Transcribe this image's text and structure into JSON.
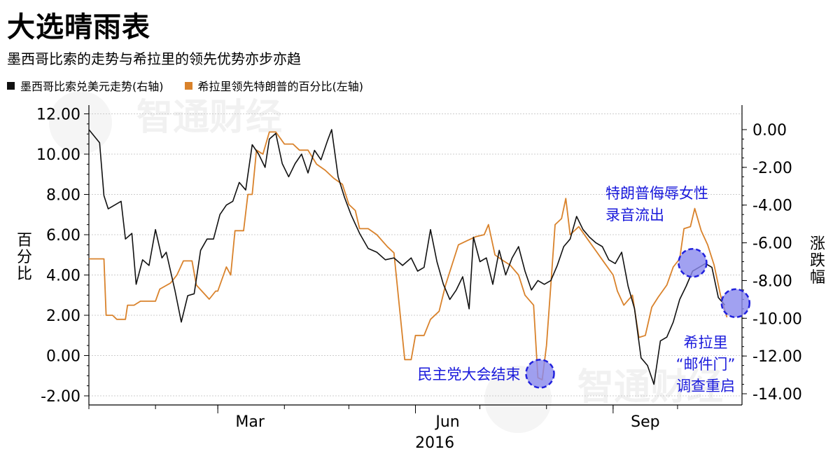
{
  "title": "大选晴雨表",
  "subtitle": "墨西哥比索的走势与希拉里的领先优势亦步亦趋",
  "watermark": "智通财经",
  "legend": [
    {
      "label": "墨西哥比索兑美元走势(右轴)",
      "color": "#111111"
    },
    {
      "label": "希拉里领先特朗普的百分比(左轴)",
      "color": "#d9822b"
    }
  ],
  "chart_data": {
    "type": "line",
    "x_axis": {
      "ticks": [
        "Mar",
        "Jun",
        "Sep"
      ],
      "year_label": "2016",
      "range": [
        "2016-01-01",
        "2016-10-31"
      ]
    },
    "y_left": {
      "label": "百分比",
      "range": [
        -2,
        12
      ],
      "ticks": [
        "-2.00",
        "0.00",
        "2.00",
        "4.00",
        "6.00",
        "8.00",
        "10.00",
        "12.00"
      ]
    },
    "y_right": {
      "label": "涨跌幅",
      "range": [
        -14,
        0
      ],
      "ticks": [
        "0.00",
        "-2.00",
        "-4.00",
        "-6.00",
        "-8.00",
        "-10.00",
        "-12.00",
        "-14.00"
      ]
    },
    "series": [
      {
        "name": "希拉里领先特朗普的百分比(左轴)",
        "axis": "left",
        "color": "#d9822b",
        "points": [
          [
            "2016-01-01",
            4.8
          ],
          [
            "2016-01-08",
            4.8
          ],
          [
            "2016-01-09",
            2.0
          ],
          [
            "2016-01-12",
            2.0
          ],
          [
            "2016-01-14",
            1.8
          ],
          [
            "2016-01-18",
            1.8
          ],
          [
            "2016-01-19",
            2.5
          ],
          [
            "2016-01-22",
            2.5
          ],
          [
            "2016-01-25",
            2.7
          ],
          [
            "2016-02-01",
            2.7
          ],
          [
            "2016-02-03",
            3.3
          ],
          [
            "2016-02-08",
            3.6
          ],
          [
            "2016-02-11",
            4.0
          ],
          [
            "2016-02-14",
            4.7
          ],
          [
            "2016-02-18",
            4.7
          ],
          [
            "2016-02-20",
            3.5
          ],
          [
            "2016-02-26",
            2.8
          ],
          [
            "2016-02-29",
            3.2
          ],
          [
            "2016-03-01",
            3.2
          ],
          [
            "2016-03-05",
            4.4
          ],
          [
            "2016-03-07",
            4.0
          ],
          [
            "2016-03-09",
            6.2
          ],
          [
            "2016-03-13",
            6.2
          ],
          [
            "2016-03-15",
            8.0
          ],
          [
            "2016-03-17",
            8.0
          ],
          [
            "2016-03-19",
            10.2
          ],
          [
            "2016-03-22",
            10.0
          ],
          [
            "2016-03-25",
            11.1
          ],
          [
            "2016-03-28",
            11.1
          ],
          [
            "2016-04-01",
            10.5
          ],
          [
            "2016-04-05",
            10.5
          ],
          [
            "2016-04-08",
            10.2
          ],
          [
            "2016-04-12",
            10.2
          ],
          [
            "2016-04-16",
            9.5
          ],
          [
            "2016-04-20",
            9.2
          ],
          [
            "2016-04-24",
            8.8
          ],
          [
            "2016-04-28",
            8.5
          ],
          [
            "2016-05-01",
            7.5
          ],
          [
            "2016-05-04",
            7.2
          ],
          [
            "2016-05-06",
            6.3
          ],
          [
            "2016-05-10",
            6.3
          ],
          [
            "2016-05-14",
            6.0
          ],
          [
            "2016-05-19",
            5.4
          ],
          [
            "2016-05-22",
            5.1
          ],
          [
            "2016-05-24",
            3.0
          ],
          [
            "2016-05-27",
            -0.2
          ],
          [
            "2016-05-30",
            -0.2
          ],
          [
            "2016-06-01",
            1.0
          ],
          [
            "2016-06-05",
            1.0
          ],
          [
            "2016-06-08",
            1.8
          ],
          [
            "2016-06-12",
            2.2
          ],
          [
            "2016-06-15",
            3.5
          ],
          [
            "2016-06-18",
            4.5
          ],
          [
            "2016-06-21",
            5.5
          ],
          [
            "2016-06-25",
            5.7
          ],
          [
            "2016-06-29",
            5.9
          ],
          [
            "2016-07-03",
            6.0
          ],
          [
            "2016-07-05",
            6.5
          ],
          [
            "2016-07-08",
            5.0
          ],
          [
            "2016-07-12",
            4.7
          ],
          [
            "2016-07-15",
            4.5
          ],
          [
            "2016-07-19",
            4.0
          ],
          [
            "2016-07-22",
            3.0
          ],
          [
            "2016-07-26",
            2.5
          ],
          [
            "2016-07-28",
            -1.1
          ],
          [
            "2016-07-30",
            -1.2
          ],
          [
            "2016-08-01",
            0.5
          ],
          [
            "2016-08-03",
            3.5
          ],
          [
            "2016-08-05",
            6.5
          ],
          [
            "2016-08-08",
            6.8
          ],
          [
            "2016-08-10",
            7.8
          ],
          [
            "2016-08-12",
            6.0
          ],
          [
            "2016-08-16",
            6.4
          ],
          [
            "2016-08-20",
            5.8
          ],
          [
            "2016-08-24",
            5.2
          ],
          [
            "2016-08-28",
            4.6
          ],
          [
            "2016-09-01",
            4.0
          ],
          [
            "2016-09-03",
            3.2
          ],
          [
            "2016-09-06",
            2.5
          ],
          [
            "2016-09-10",
            3.0
          ],
          [
            "2016-09-13",
            0.9
          ],
          [
            "2016-09-16",
            1.0
          ],
          [
            "2016-09-19",
            2.4
          ],
          [
            "2016-09-22",
            2.9
          ],
          [
            "2016-09-26",
            3.5
          ],
          [
            "2016-09-29",
            4.4
          ],
          [
            "2016-10-02",
            4.8
          ],
          [
            "2016-10-04",
            6.3
          ],
          [
            "2016-10-07",
            6.4
          ],
          [
            "2016-10-09",
            7.3
          ],
          [
            "2016-10-12",
            6.2
          ],
          [
            "2016-10-15",
            5.5
          ],
          [
            "2016-10-18",
            4.5
          ],
          [
            "2016-10-21",
            3.0
          ],
          [
            "2016-10-24",
            1.9
          ]
        ]
      },
      {
        "name": "墨西哥比索兑美元走势(右轴)",
        "axis": "right",
        "color": "#111111",
        "points": [
          [
            "2016-01-01",
            0.0
          ],
          [
            "2016-01-06",
            -0.7
          ],
          [
            "2016-01-08",
            -3.5
          ],
          [
            "2016-01-10",
            -4.2
          ],
          [
            "2016-01-13",
            -4.0
          ],
          [
            "2016-01-16",
            -3.8
          ],
          [
            "2016-01-18",
            -5.8
          ],
          [
            "2016-01-21",
            -5.5
          ],
          [
            "2016-01-23",
            -8.2
          ],
          [
            "2016-01-26",
            -6.9
          ],
          [
            "2016-01-29",
            -7.2
          ],
          [
            "2016-02-01",
            -5.3
          ],
          [
            "2016-02-04",
            -6.8
          ],
          [
            "2016-02-06",
            -6.5
          ],
          [
            "2016-02-10",
            -8.5
          ],
          [
            "2016-02-13",
            -10.2
          ],
          [
            "2016-02-16",
            -8.8
          ],
          [
            "2016-02-19",
            -8.7
          ],
          [
            "2016-02-22",
            -6.4
          ],
          [
            "2016-02-25",
            -5.8
          ],
          [
            "2016-02-28",
            -5.8
          ],
          [
            "2016-03-02",
            -4.5
          ],
          [
            "2016-03-05",
            -4.0
          ],
          [
            "2016-03-08",
            -3.8
          ],
          [
            "2016-03-11",
            -2.8
          ],
          [
            "2016-03-14",
            -3.2
          ],
          [
            "2016-03-17",
            -0.8
          ],
          [
            "2016-03-20",
            -1.3
          ],
          [
            "2016-03-23",
            -2.0
          ],
          [
            "2016-03-25",
            -0.5
          ],
          [
            "2016-03-28",
            -0.2
          ],
          [
            "2016-03-31",
            -1.8
          ],
          [
            "2016-04-03",
            -2.5
          ],
          [
            "2016-04-06",
            -1.8
          ],
          [
            "2016-04-09",
            -1.3
          ],
          [
            "2016-04-12",
            -2.3
          ],
          [
            "2016-04-15",
            -1.1
          ],
          [
            "2016-04-18",
            -1.6
          ],
          [
            "2016-04-21",
            -0.6
          ],
          [
            "2016-04-23",
            0.0
          ],
          [
            "2016-04-26",
            -2.5
          ],
          [
            "2016-04-29",
            -3.6
          ],
          [
            "2016-05-02",
            -4.5
          ],
          [
            "2016-05-06",
            -5.5
          ],
          [
            "2016-05-10",
            -6.3
          ],
          [
            "2016-05-14",
            -6.5
          ],
          [
            "2016-05-18",
            -6.9
          ],
          [
            "2016-05-22",
            -6.8
          ],
          [
            "2016-05-26",
            -7.2
          ],
          [
            "2016-05-30",
            -6.8
          ],
          [
            "2016-06-02",
            -7.5
          ],
          [
            "2016-06-05",
            -7.3
          ],
          [
            "2016-06-08",
            -5.3
          ],
          [
            "2016-06-11",
            -7.0
          ],
          [
            "2016-06-14",
            -8.2
          ],
          [
            "2016-06-17",
            -9.0
          ],
          [
            "2016-06-20",
            -8.5
          ],
          [
            "2016-06-23",
            -7.8
          ],
          [
            "2016-06-26",
            -9.5
          ],
          [
            "2016-06-28",
            -5.7
          ],
          [
            "2016-07-01",
            -7.0
          ],
          [
            "2016-07-04",
            -6.8
          ],
          [
            "2016-07-07",
            -8.2
          ],
          [
            "2016-07-10",
            -6.4
          ],
          [
            "2016-07-13",
            -7.7
          ],
          [
            "2016-07-16",
            -6.8
          ],
          [
            "2016-07-19",
            -6.2
          ],
          [
            "2016-07-22",
            -7.5
          ],
          [
            "2016-07-25",
            -8.5
          ],
          [
            "2016-07-28",
            -8.0
          ],
          [
            "2016-07-31",
            -8.2
          ],
          [
            "2016-08-03",
            -8.0
          ],
          [
            "2016-08-06",
            -7.2
          ],
          [
            "2016-08-09",
            -6.2
          ],
          [
            "2016-08-12",
            -5.8
          ],
          [
            "2016-08-15",
            -4.6
          ],
          [
            "2016-08-18",
            -5.3
          ],
          [
            "2016-08-21",
            -5.7
          ],
          [
            "2016-08-24",
            -6.0
          ],
          [
            "2016-08-27",
            -6.2
          ],
          [
            "2016-08-30",
            -6.9
          ],
          [
            "2016-09-02",
            -7.1
          ],
          [
            "2016-09-05",
            -6.5
          ],
          [
            "2016-09-08",
            -8.3
          ],
          [
            "2016-09-11",
            -9.5
          ],
          [
            "2016-09-14",
            -12.1
          ],
          [
            "2016-09-17",
            -12.5
          ],
          [
            "2016-09-20",
            -13.5
          ],
          [
            "2016-09-23",
            -11.2
          ],
          [
            "2016-09-26",
            -11.0
          ],
          [
            "2016-09-29",
            -10.2
          ],
          [
            "2016-10-02",
            -9.0
          ],
          [
            "2016-10-05",
            -8.3
          ],
          [
            "2016-10-08",
            -7.5
          ],
          [
            "2016-10-11",
            -7.3
          ],
          [
            "2016-10-14",
            -7.1
          ],
          [
            "2016-10-17",
            -7.3
          ],
          [
            "2016-10-20",
            -8.9
          ],
          [
            "2016-10-23",
            -9.3
          ]
        ]
      }
    ],
    "annotations": [
      {
        "text": "民主党大会结束",
        "date": "2016-07-29",
        "value": -0.9,
        "axis": "left",
        "anchor": "left"
      },
      {
        "text": "特朗普侮辱女性录音流出",
        "date": "2016-10-08",
        "value": 4.6,
        "axis": "left",
        "anchor": "above"
      },
      {
        "text": "希拉里“邮件门”调查重启",
        "date": "2016-10-28",
        "value": 2.6,
        "axis": "left",
        "anchor": "below"
      }
    ],
    "colors": {
      "annotation_text": "#1a1adb",
      "marker_fill": "#8a8aee",
      "marker_stroke": "#2222dd",
      "grid": "#cccccc"
    }
  }
}
